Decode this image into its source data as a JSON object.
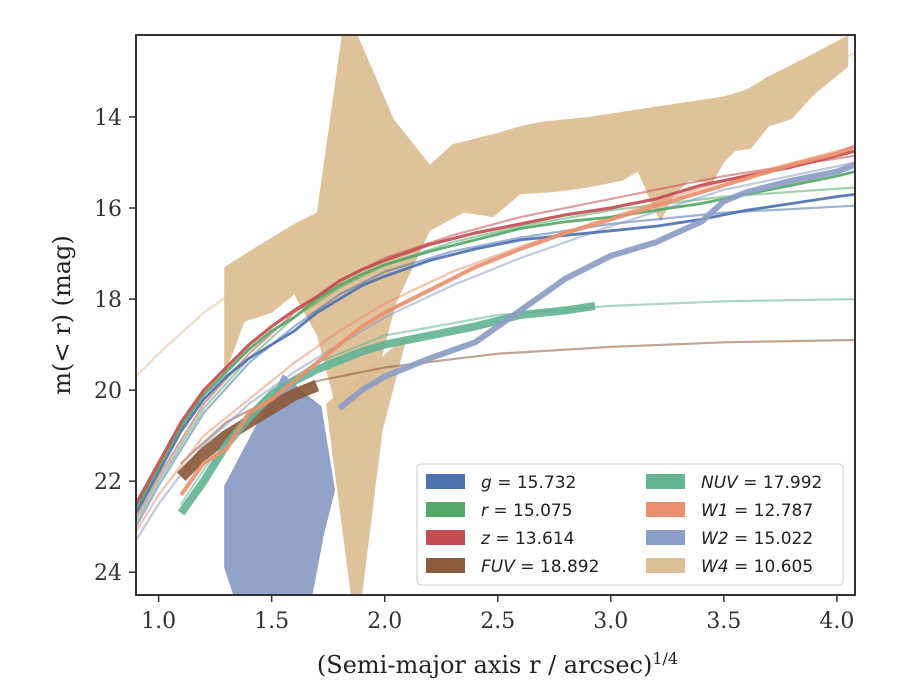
{
  "chart_data": {
    "type": "line",
    "xlabel": "(Semi-major axis r / arcsec)",
    "xlabel_sup": "1/4",
    "ylabel": "m(< r) (mag)",
    "xlim": [
      0.9,
      4.08
    ],
    "ylim": [
      24.5,
      12.2
    ],
    "x_ticks": [
      1.0,
      1.5,
      2.0,
      2.5,
      3.0,
      3.5,
      4.0
    ],
    "x_tick_labels": [
      "1.0",
      "1.5",
      "2.0",
      "2.5",
      "3.0",
      "3.5",
      "4.0"
    ],
    "y_ticks": [
      14,
      16,
      18,
      20,
      22,
      24
    ],
    "y_tick_labels": [
      "14",
      "16",
      "18",
      "20",
      "22",
      "24"
    ],
    "grid": false,
    "legend_position": "lower-right",
    "series": [
      {
        "name": "g = 15.732",
        "symbol": "g",
        "value": "15.732",
        "color": "#4c72b0",
        "data": [
          [
            0.9,
            22.7
          ],
          [
            1.0,
            21.8
          ],
          [
            1.1,
            20.9
          ],
          [
            1.2,
            20.2
          ],
          [
            1.3,
            19.7
          ],
          [
            1.4,
            19.3
          ],
          [
            1.5,
            19.0
          ],
          [
            1.6,
            18.7
          ],
          [
            1.7,
            18.3
          ],
          [
            1.8,
            18.0
          ],
          [
            1.9,
            17.7
          ],
          [
            2.0,
            17.5
          ],
          [
            2.2,
            17.15
          ],
          [
            2.4,
            16.9
          ],
          [
            2.6,
            16.7
          ],
          [
            2.8,
            16.6
          ],
          [
            3.0,
            16.5
          ],
          [
            3.2,
            16.4
          ],
          [
            3.4,
            16.25
          ],
          [
            3.6,
            16.05
          ],
          [
            3.8,
            15.9
          ],
          [
            4.0,
            15.75
          ],
          [
            4.08,
            15.7
          ]
        ],
        "model": [
          [
            0.9,
            23.0
          ],
          [
            1.0,
            22.1
          ],
          [
            1.2,
            20.5
          ],
          [
            1.4,
            19.4
          ],
          [
            1.6,
            18.6
          ],
          [
            1.8,
            17.9
          ],
          [
            2.0,
            17.4
          ],
          [
            2.3,
            16.95
          ],
          [
            2.6,
            16.65
          ],
          [
            3.0,
            16.35
          ],
          [
            3.5,
            16.1
          ],
          [
            4.08,
            15.95
          ]
        ]
      },
      {
        "name": "r = 15.075",
        "symbol": "r",
        "value": "15.075",
        "color": "#55a868",
        "data": [
          [
            0.9,
            22.6
          ],
          [
            1.0,
            21.7
          ],
          [
            1.1,
            20.8
          ],
          [
            1.2,
            20.1
          ],
          [
            1.3,
            19.6
          ],
          [
            1.4,
            19.1
          ],
          [
            1.5,
            18.7
          ],
          [
            1.6,
            18.4
          ],
          [
            1.7,
            18.0
          ],
          [
            1.8,
            17.7
          ],
          [
            1.9,
            17.45
          ],
          [
            2.0,
            17.25
          ],
          [
            2.2,
            16.95
          ],
          [
            2.4,
            16.7
          ],
          [
            2.6,
            16.45
          ],
          [
            2.8,
            16.3
          ],
          [
            3.0,
            16.2
          ],
          [
            3.2,
            16.05
          ],
          [
            3.4,
            15.9
          ],
          [
            3.6,
            15.7
          ],
          [
            3.8,
            15.5
          ],
          [
            4.0,
            15.3
          ],
          [
            4.08,
            15.2
          ]
        ],
        "model": [
          [
            0.9,
            22.9
          ],
          [
            1.0,
            22.0
          ],
          [
            1.2,
            20.4
          ],
          [
            1.4,
            19.3
          ],
          [
            1.6,
            18.4
          ],
          [
            1.8,
            17.75
          ],
          [
            2.0,
            17.25
          ],
          [
            2.3,
            16.75
          ],
          [
            2.6,
            16.4
          ],
          [
            3.0,
            16.05
          ],
          [
            3.5,
            15.75
          ],
          [
            4.08,
            15.55
          ]
        ]
      },
      {
        "name": "z = 13.614",
        "symbol": "z",
        "value": "13.614",
        "color": "#c44e52",
        "data": [
          [
            0.9,
            22.5
          ],
          [
            1.0,
            21.6
          ],
          [
            1.1,
            20.7
          ],
          [
            1.2,
            20.0
          ],
          [
            1.3,
            19.5
          ],
          [
            1.4,
            19.0
          ],
          [
            1.5,
            18.6
          ],
          [
            1.6,
            18.25
          ],
          [
            1.7,
            17.95
          ],
          [
            1.8,
            17.6
          ],
          [
            1.9,
            17.35
          ],
          [
            2.0,
            17.15
          ],
          [
            2.2,
            16.8
          ],
          [
            2.4,
            16.55
          ],
          [
            2.6,
            16.35
          ],
          [
            2.8,
            16.15
          ],
          [
            3.0,
            16.0
          ],
          [
            3.2,
            15.8
          ],
          [
            3.4,
            15.5
          ],
          [
            3.6,
            15.3
          ],
          [
            3.8,
            15.1
          ],
          [
            4.0,
            14.85
          ],
          [
            4.08,
            14.75
          ]
        ],
        "model": [
          [
            0.9,
            22.8
          ],
          [
            1.0,
            21.9
          ],
          [
            1.2,
            20.3
          ],
          [
            1.4,
            19.2
          ],
          [
            1.6,
            18.3
          ],
          [
            1.8,
            17.6
          ],
          [
            2.0,
            17.1
          ],
          [
            2.3,
            16.6
          ],
          [
            2.6,
            16.2
          ],
          [
            3.0,
            15.8
          ],
          [
            3.5,
            15.3
          ],
          [
            4.08,
            14.85
          ]
        ]
      },
      {
        "name": "FUV = 18.892",
        "symbol": "FUV",
        "value": "18.892",
        "color": "#8c5a3c",
        "data": [
          [
            1.1,
            21.9
          ],
          [
            1.2,
            21.4
          ],
          [
            1.3,
            21.0
          ],
          [
            1.4,
            20.7
          ],
          [
            1.5,
            20.4
          ],
          [
            1.6,
            20.1
          ],
          [
            1.7,
            19.9
          ]
        ],
        "model": [
          [
            1.1,
            21.6
          ],
          [
            1.3,
            20.7
          ],
          [
            1.5,
            20.2
          ],
          [
            1.7,
            19.8
          ],
          [
            2.0,
            19.5
          ],
          [
            2.5,
            19.2
          ],
          [
            3.0,
            19.05
          ],
          [
            3.5,
            18.95
          ],
          [
            4.08,
            18.9
          ]
        ]
      },
      {
        "name": "NUV = 17.992",
        "symbol": "NUV",
        "value": "17.992",
        "color": "#64b496",
        "data": [
          [
            1.1,
            22.7
          ],
          [
            1.2,
            22.0
          ],
          [
            1.3,
            21.2
          ],
          [
            1.4,
            20.6
          ],
          [
            1.5,
            20.1
          ],
          [
            1.6,
            19.8
          ],
          [
            1.7,
            19.55
          ],
          [
            1.8,
            19.35
          ],
          [
            1.9,
            19.15
          ],
          [
            2.0,
            19.0
          ],
          [
            2.2,
            18.8
          ],
          [
            2.4,
            18.6
          ],
          [
            2.6,
            18.35
          ],
          [
            2.8,
            18.25
          ],
          [
            2.93,
            18.15
          ]
        ],
        "model": [
          [
            1.1,
            22.5
          ],
          [
            1.3,
            21.0
          ],
          [
            1.5,
            20.0
          ],
          [
            1.7,
            19.4
          ],
          [
            2.0,
            18.8
          ],
          [
            2.5,
            18.35
          ],
          [
            3.0,
            18.15
          ],
          [
            3.5,
            18.05
          ],
          [
            4.08,
            18.0
          ]
        ]
      },
      {
        "name": "W1 = 12.787",
        "symbol": "W1",
        "value": "12.787",
        "color": "#ec8f6e",
        "data": [
          [
            1.1,
            22.3
          ],
          [
            1.2,
            21.6
          ],
          [
            1.3,
            21.3
          ],
          [
            1.4,
            20.5
          ],
          [
            1.5,
            20.2
          ],
          [
            1.6,
            19.8
          ],
          [
            1.7,
            19.4
          ],
          [
            1.8,
            19.0
          ],
          [
            1.9,
            18.6
          ],
          [
            2.0,
            18.3
          ],
          [
            2.2,
            17.8
          ],
          [
            2.4,
            17.3
          ],
          [
            2.6,
            16.9
          ],
          [
            2.8,
            16.55
          ],
          [
            3.0,
            16.25
          ],
          [
            3.2,
            15.95
          ],
          [
            3.4,
            15.65
          ],
          [
            3.6,
            15.35
          ],
          [
            3.8,
            15.05
          ],
          [
            4.0,
            14.8
          ],
          [
            4.08,
            14.65
          ]
        ],
        "model": [
          [
            0.9,
            23.1
          ],
          [
            1.0,
            22.3
          ],
          [
            1.2,
            21.0
          ],
          [
            1.4,
            20.2
          ],
          [
            1.6,
            19.4
          ],
          [
            1.8,
            18.7
          ],
          [
            2.0,
            18.1
          ],
          [
            2.3,
            17.4
          ],
          [
            2.6,
            16.85
          ],
          [
            3.0,
            16.2
          ],
          [
            3.5,
            15.4
          ],
          [
            4.08,
            14.65
          ]
        ]
      },
      {
        "name": "W2 = 15.022",
        "symbol": "W2",
        "value": "15.022",
        "color": "#8c9dc6",
        "data": [
          [
            1.8,
            20.4
          ],
          [
            1.9,
            20.0
          ],
          [
            2.0,
            19.7
          ],
          [
            2.2,
            19.3
          ],
          [
            2.4,
            18.95
          ],
          [
            2.6,
            18.25
          ],
          [
            2.8,
            17.55
          ],
          [
            3.0,
            17.05
          ],
          [
            3.2,
            16.75
          ],
          [
            3.4,
            16.3
          ],
          [
            3.5,
            15.85
          ],
          [
            3.6,
            15.65
          ],
          [
            3.8,
            15.4
          ],
          [
            4.0,
            15.2
          ],
          [
            4.08,
            15.05
          ]
        ],
        "model": [
          [
            0.9,
            23.3
          ],
          [
            1.0,
            22.5
          ],
          [
            1.2,
            21.2
          ],
          [
            1.4,
            20.3
          ],
          [
            1.6,
            19.6
          ],
          [
            1.8,
            19.0
          ],
          [
            2.0,
            18.4
          ],
          [
            2.3,
            17.7
          ],
          [
            2.6,
            17.1
          ],
          [
            3.0,
            16.4
          ],
          [
            3.5,
            15.6
          ],
          [
            4.08,
            15.0
          ]
        ],
        "band": {
          "upper": [
            [
              1.29,
              22.1
            ],
            [
              1.55,
              19.65
            ],
            [
              1.68,
              20.2
            ],
            [
              1.72,
              20.35
            ],
            [
              1.78,
              22.2
            ],
            [
              1.73,
              23.2
            ],
            [
              1.68,
              24.5
            ]
          ],
          "lower": [
            [
              1.29,
              22.1
            ],
            [
              1.29,
              23.9
            ],
            [
              1.33,
              24.5
            ]
          ]
        }
      },
      {
        "name": "W4 = 10.605",
        "symbol": "W4",
        "value": "10.605",
        "color": "#ddbf95",
        "model": [
          [
            0.9,
            19.7
          ],
          [
            1.0,
            19.2
          ],
          [
            1.2,
            18.3
          ],
          [
            1.4,
            17.6
          ],
          [
            1.6,
            17.0
          ],
          [
            1.8,
            16.5
          ],
          [
            2.0,
            16.1
          ],
          [
            2.3,
            15.5
          ],
          [
            2.6,
            15.0
          ],
          [
            3.0,
            14.4
          ],
          [
            3.5,
            13.7
          ],
          [
            4.08,
            12.6
          ]
        ],
        "band": {
          "upper": [
            [
              1.29,
              17.3
            ],
            [
              1.45,
              16.8
            ],
            [
              1.6,
              16.35
            ],
            [
              1.7,
              16.1
            ],
            [
              1.81,
              12.2
            ],
            [
              1.88,
              12.2
            ],
            [
              2.04,
              14.05
            ],
            [
              2.2,
              15.05
            ],
            [
              2.3,
              14.6
            ],
            [
              2.5,
              14.35
            ],
            [
              2.6,
              14.2
            ],
            [
              2.7,
              14.1
            ],
            [
              2.9,
              14.0
            ],
            [
              3.1,
              13.85
            ],
            [
              3.3,
              13.7
            ],
            [
              3.5,
              13.55
            ],
            [
              3.6,
              13.4
            ],
            [
              3.7,
              13.1
            ],
            [
              3.8,
              12.85
            ],
            [
              3.9,
              12.6
            ],
            [
              4.05,
              12.2
            ]
          ],
          "lower": [
            [
              1.29,
              19.7
            ],
            [
              1.38,
              18.5
            ],
            [
              1.5,
              18.3
            ],
            [
              1.6,
              17.9
            ],
            [
              1.7,
              18.8
            ],
            [
              1.78,
              20.3
            ],
            [
              1.83,
              20.6
            ],
            [
              1.97,
              19.6
            ],
            [
              2.05,
              18.1
            ],
            [
              2.2,
              16.5
            ],
            [
              2.35,
              16.1
            ],
            [
              2.48,
              16.2
            ],
            [
              2.6,
              15.7
            ],
            [
              2.75,
              15.65
            ],
            [
              2.9,
              15.55
            ],
            [
              3.05,
              15.4
            ],
            [
              3.12,
              15.2
            ],
            [
              3.18,
              15.9
            ],
            [
              3.22,
              16.3
            ],
            [
              3.28,
              15.7
            ],
            [
              3.35,
              15.4
            ],
            [
              3.45,
              15.45
            ],
            [
              3.5,
              15.0
            ],
            [
              3.55,
              14.75
            ],
            [
              3.62,
              14.7
            ],
            [
              3.7,
              14.2
            ],
            [
              3.8,
              14.05
            ],
            [
              3.9,
              13.5
            ],
            [
              4.0,
              13.1
            ],
            [
              4.05,
              12.9
            ]
          ],
          "spike": [
            [
              1.74,
              20.3
            ],
            [
              1.85,
              24.5
            ],
            [
              1.9,
              24.5
            ],
            [
              1.99,
              20.9
            ],
            [
              2.1,
              18.8
            ]
          ]
        }
      }
    ]
  }
}
